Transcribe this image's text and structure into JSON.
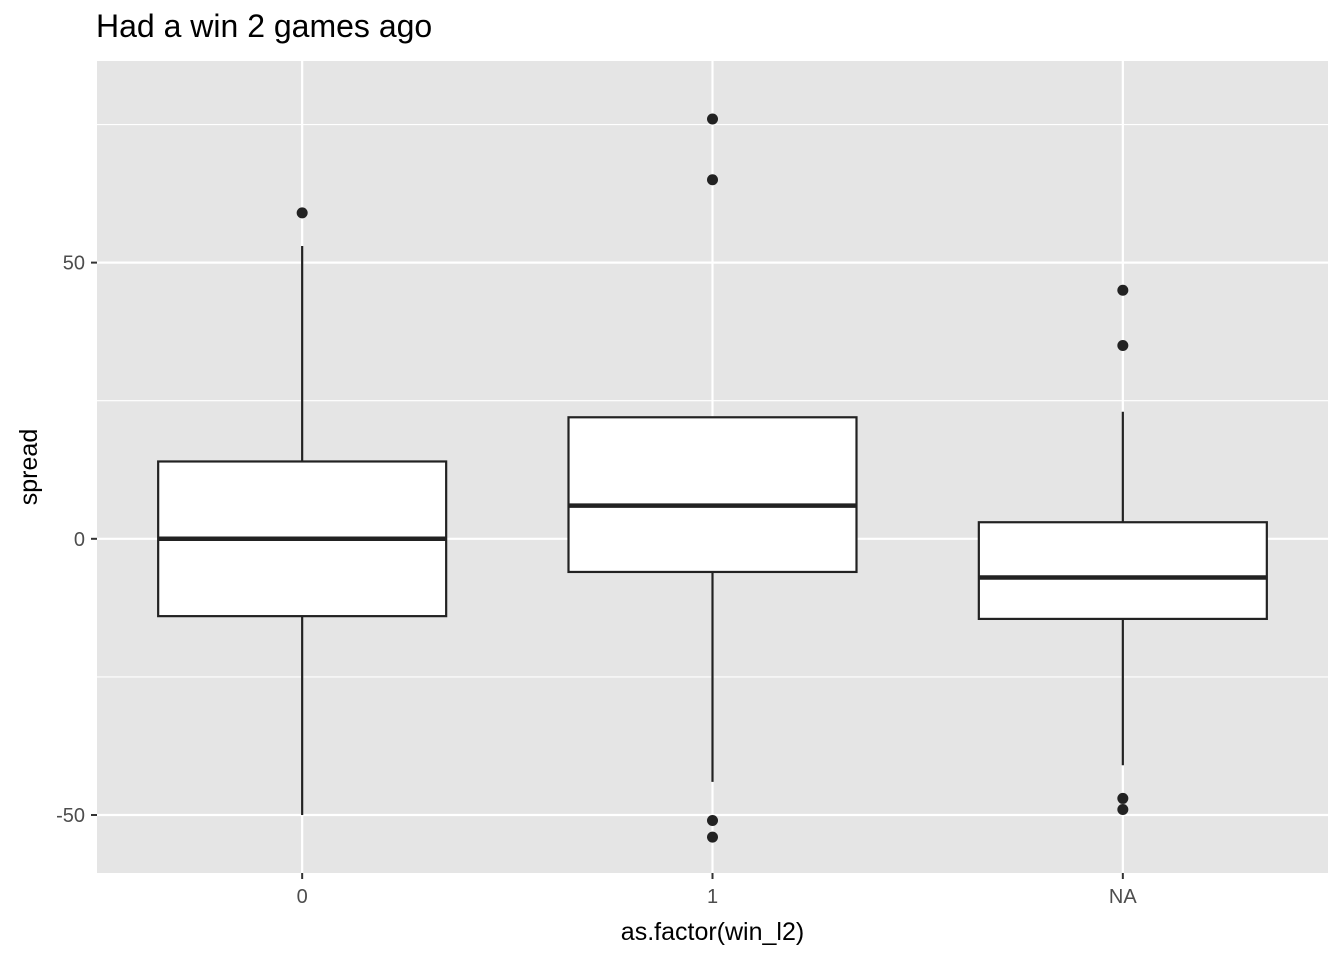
{
  "chart_data": {
    "type": "boxplot",
    "title": "Had a win 2 games ago",
    "xlabel": "as.factor(win_l2)",
    "ylabel": "spread",
    "categories": [
      "0",
      "1",
      "NA"
    ],
    "y_ticks": [
      -50,
      0,
      50
    ],
    "y_tick_labels": [
      "-50",
      "0",
      "50"
    ],
    "ylim": [
      -60.5,
      86.5
    ],
    "grid": true,
    "colors": {
      "panel": "#E5E5E5",
      "grid": "#FFFFFF",
      "box_fill": "#FFFFFF",
      "box_stroke": "#222222",
      "point": "#222222"
    },
    "boxes": [
      {
        "category": "0",
        "whisker_low": -50,
        "q1": -14,
        "median": 0,
        "q3": 14,
        "whisker_high": 53,
        "outliers": [
          59
        ]
      },
      {
        "category": "1",
        "whisker_low": -44,
        "q1": -6,
        "median": 6,
        "q3": 22,
        "whisker_high": 22,
        "outliers": [
          65,
          76,
          -51,
          -54
        ]
      },
      {
        "category": "NA",
        "whisker_low": -41,
        "q1": -14.5,
        "median": -7,
        "q3": 3,
        "whisker_high": 23,
        "outliers": [
          45,
          35,
          -47,
          -49
        ]
      }
    ]
  }
}
